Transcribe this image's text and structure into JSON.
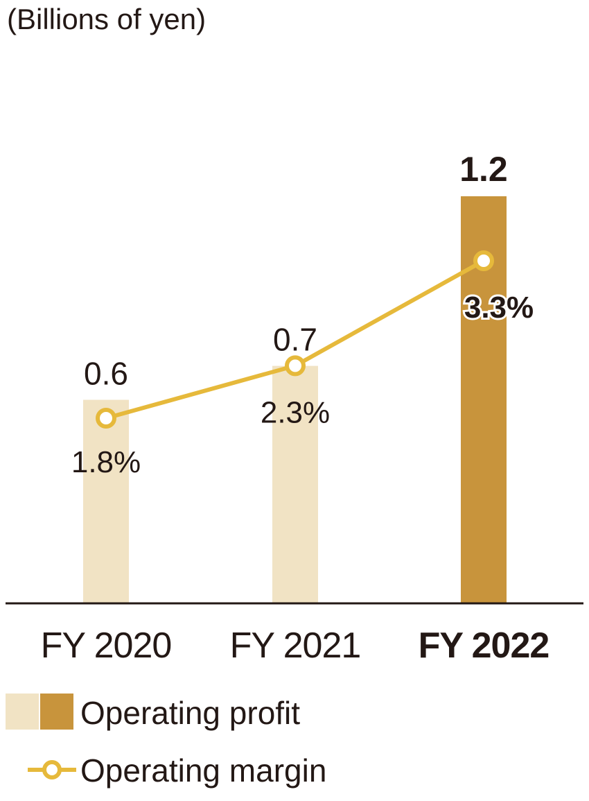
{
  "chart_data": {
    "type": "bar",
    "unit_label": "(Billions of yen)",
    "categories": [
      "FY 2020",
      "FY 2021",
      "FY 2022"
    ],
    "highlight_index": 2,
    "series": [
      {
        "name": "Operating profit",
        "kind": "bar",
        "values": [
          0.6,
          0.7,
          1.2
        ],
        "value_labels": [
          "0.6",
          "0.7",
          "1.2"
        ]
      },
      {
        "name": "Operating margin",
        "kind": "line",
        "values": [
          1.8,
          2.3,
          3.3
        ],
        "value_labels": [
          "1.8%",
          "2.3%",
          "3.3%"
        ]
      }
    ],
    "colors": {
      "bar_light": "#f1e3c4",
      "bar_dark": "#c8943c",
      "line": "#e6b93b",
      "axis": "#231815"
    },
    "legend": {
      "bar_label": "Operating profit",
      "line_label": "Operating margin"
    }
  }
}
